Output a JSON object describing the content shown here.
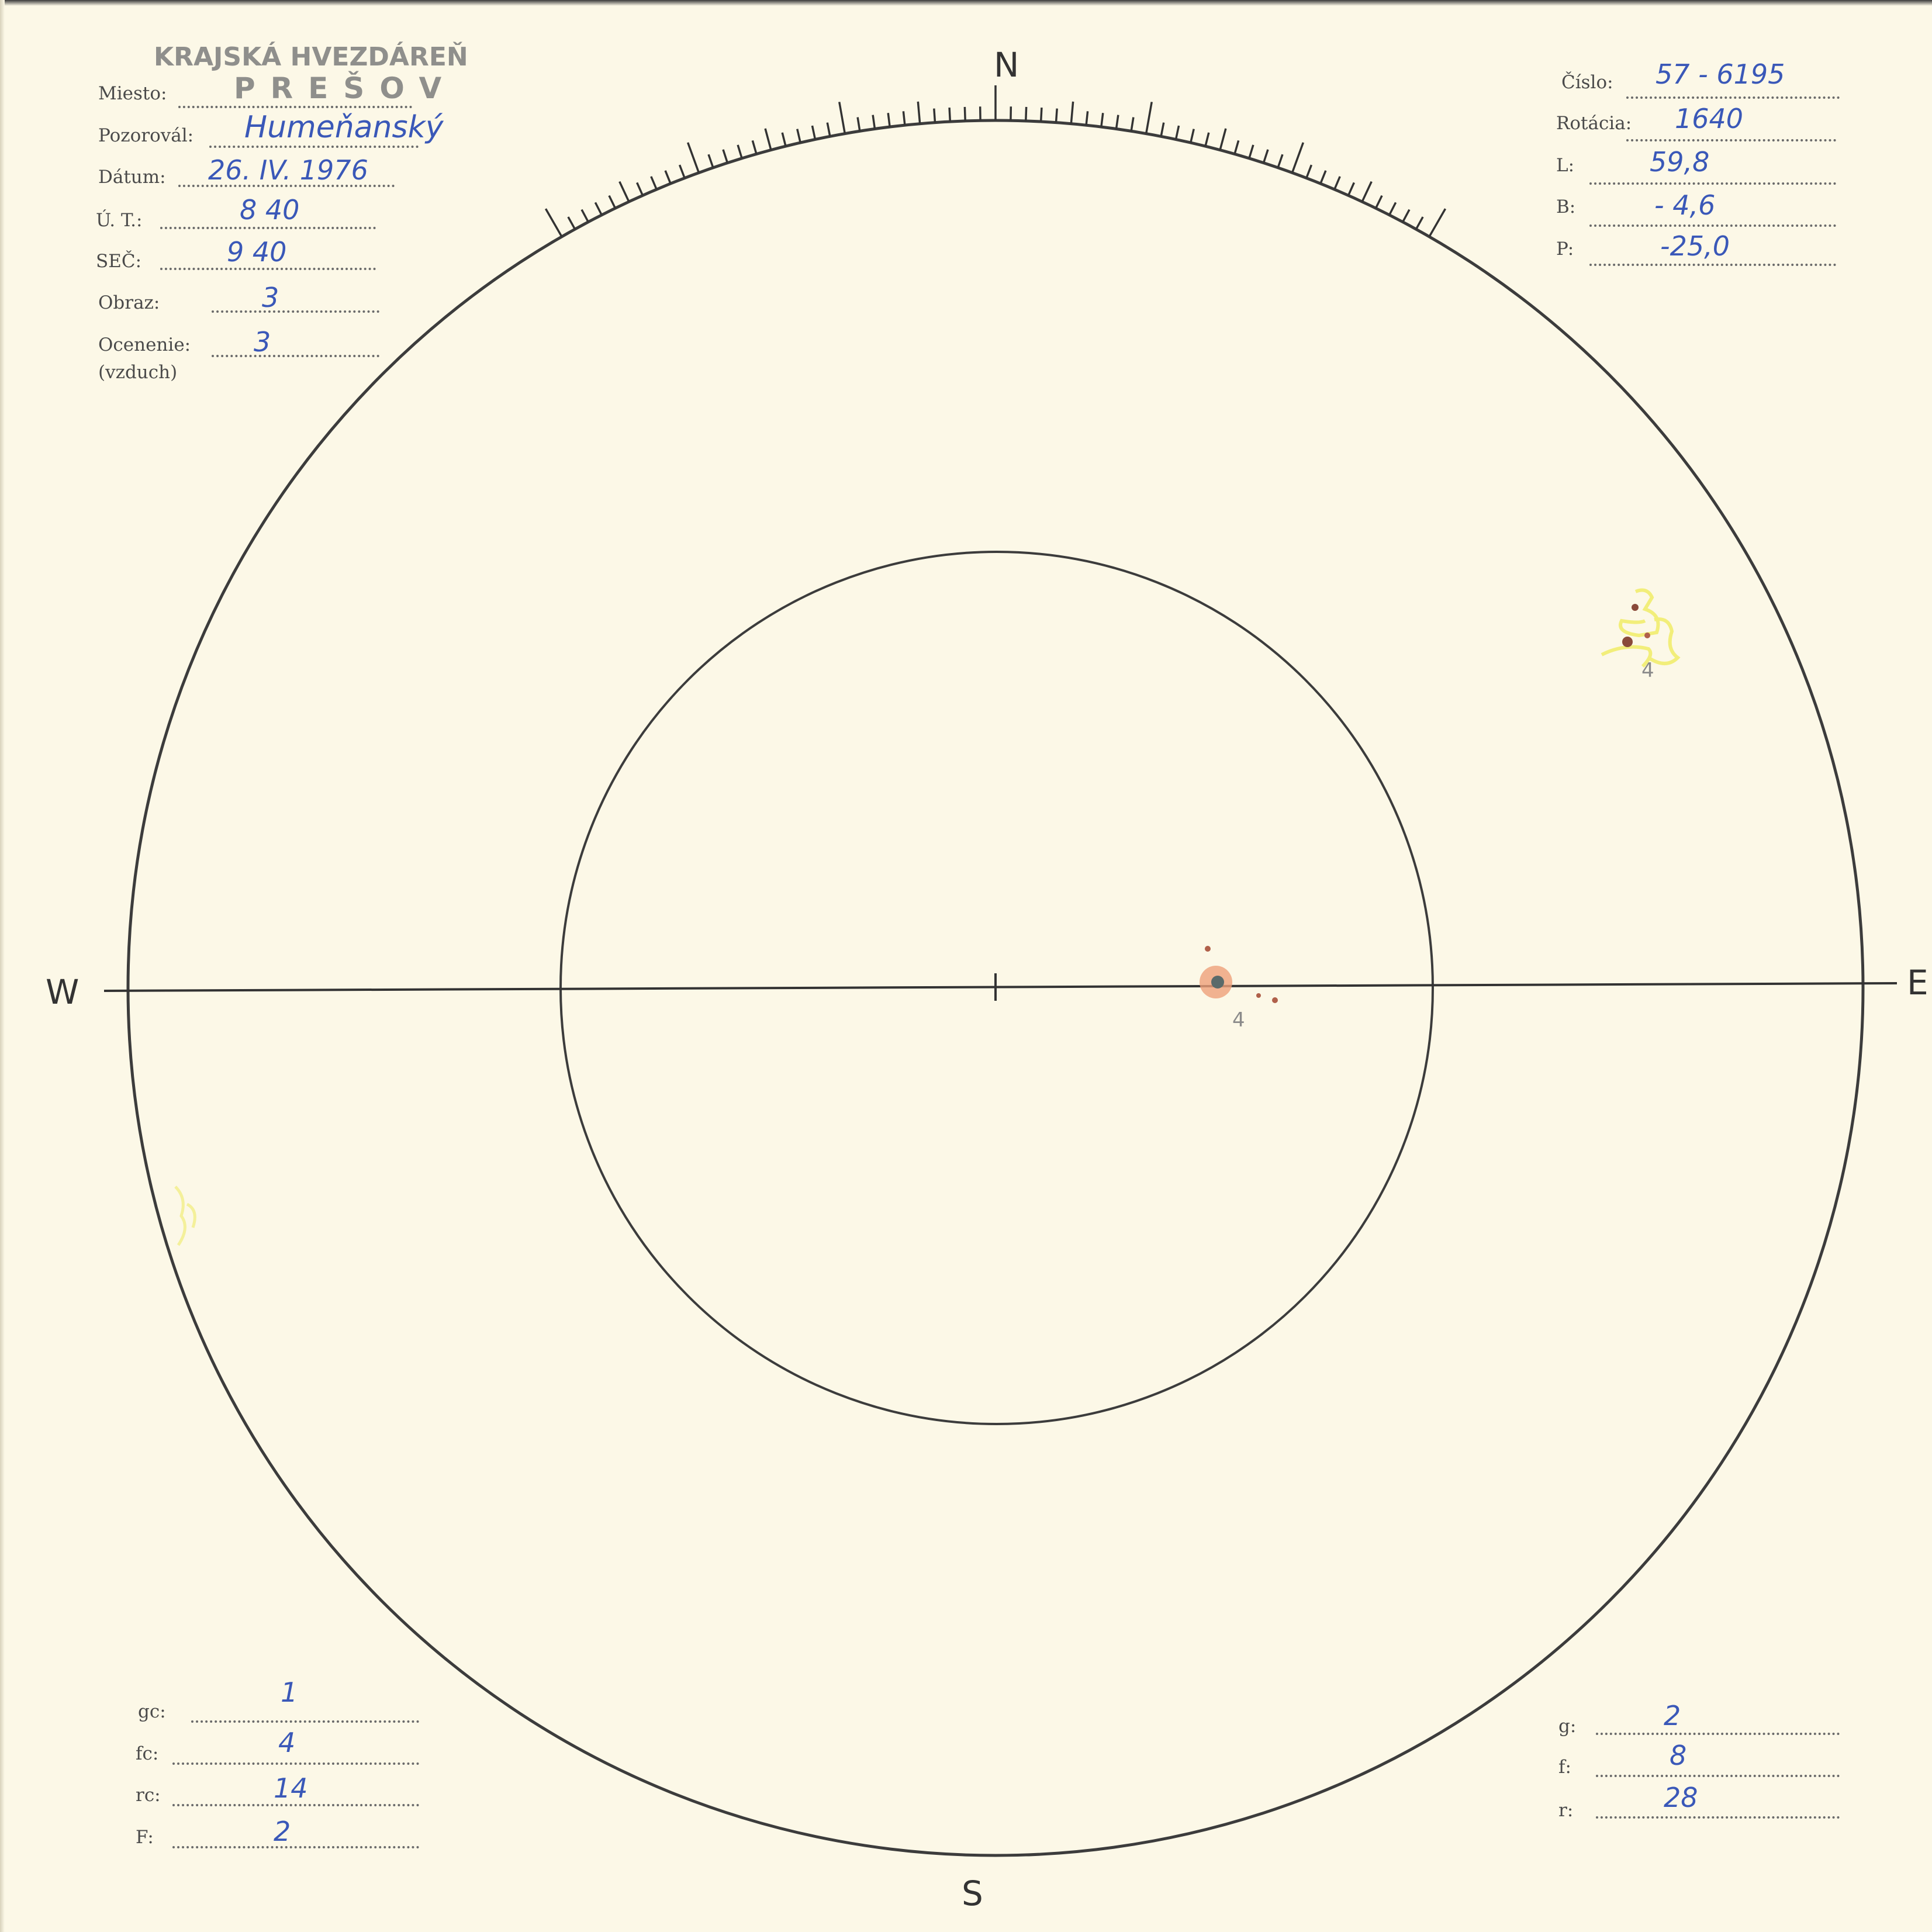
{
  "stamp": {
    "line1": "KRAJSKÁ HVEZDÁREŇ",
    "line2": "PREŠOV"
  },
  "header_left": [
    {
      "label": "Miesto:",
      "value": ""
    },
    {
      "label": "Pozorovál:",
      "value": "Humeňanský"
    },
    {
      "label": "Dátum:",
      "value": "26. IV. 1976"
    },
    {
      "label": "Ú. T.:",
      "value": "8 40"
    },
    {
      "label": "SEČ:",
      "value": "9 40"
    },
    {
      "label": "Obraz:",
      "value": "3"
    },
    {
      "label": "Ocenenie:",
      "value": "3",
      "sublabel": "(vzduch)"
    }
  ],
  "header_right": [
    {
      "label": "Číslo:",
      "value": "57 - 6195"
    },
    {
      "label": "Rotácia:",
      "value": "1640"
    },
    {
      "label": "L:",
      "value": "59,8"
    },
    {
      "label": "B:",
      "value": "- 4,6"
    },
    {
      "label": "P:",
      "value": "-25,0"
    }
  ],
  "footer_left": [
    {
      "label": "gc:",
      "value": "1"
    },
    {
      "label": "fc:",
      "value": "4"
    },
    {
      "label": "rc:",
      "value": "14"
    },
    {
      "label": "F:",
      "value": "2"
    }
  ],
  "footer_right": [
    {
      "label": "g:",
      "value": "2"
    },
    {
      "label": "f:",
      "value": "8"
    },
    {
      "label": "r:",
      "value": "28"
    }
  ],
  "directions": {
    "north": "N",
    "south": "S",
    "west": "W",
    "east": "E"
  },
  "sunspot_groups": [
    {
      "label": "4",
      "facula_color": "#f2ee7a",
      "spot_color": "#8a4a3a"
    },
    {
      "label": "4",
      "facula_color": "#eea07a",
      "spot_color": "#5a6a6a"
    }
  ],
  "colors": {
    "paper": "#fcf8e7",
    "ink": "#3a58b8",
    "print": "#4a4a4a"
  }
}
